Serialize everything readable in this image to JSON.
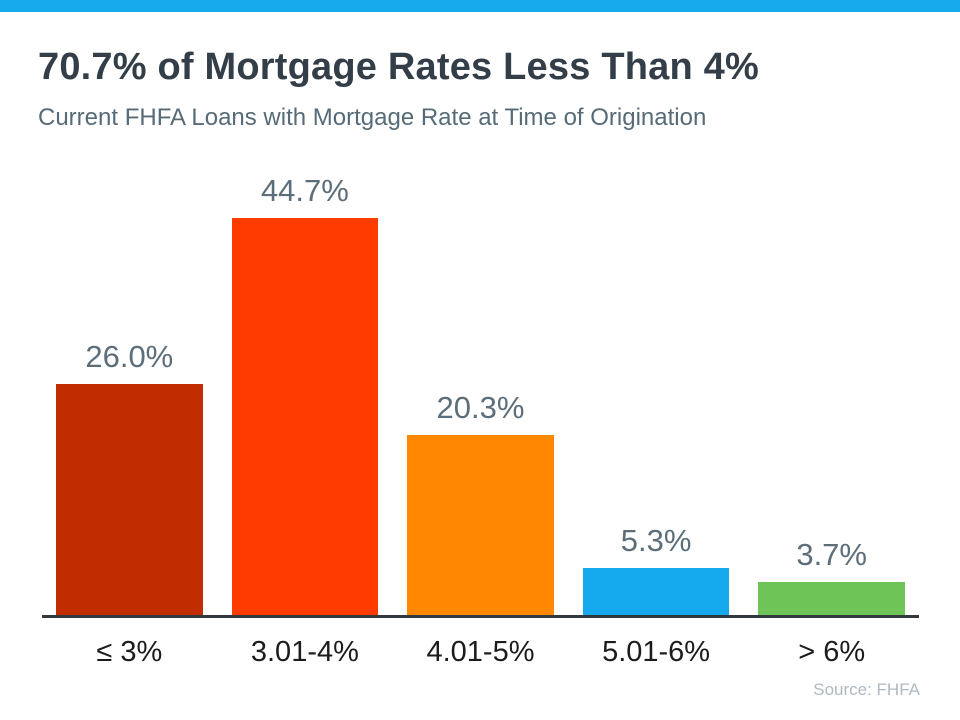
{
  "accent_color": "#17aaec",
  "header": {
    "title": "70.7% of Mortgage Rates Less Than 4%",
    "subtitle": "Current FHFA Loans with Mortgage Rate at Time of Origination"
  },
  "chart_data": {
    "type": "bar",
    "title": "70.7% of Mortgage Rates Less Than 4%",
    "subtitle": "Current FHFA Loans with Mortgage Rate at Time of Origination",
    "categories": [
      "≤ 3%",
      "3.01-4%",
      "4.01-5%",
      "5.01-6%",
      "> 6%"
    ],
    "values": [
      26.0,
      44.7,
      20.3,
      5.3,
      3.7
    ],
    "value_labels": [
      "26.0%",
      "44.7%",
      "20.3%",
      "5.3%",
      "3.7%"
    ],
    "bar_colors": [
      "#c22d00",
      "#ff3b00",
      "#ff8800",
      "#14a9ed",
      "#6fc457"
    ],
    "xlabel": "",
    "ylabel": "",
    "ylim": [
      0,
      45
    ],
    "grid": false,
    "legend": "none",
    "axis_line_color": "#33383d",
    "value_label_color": "#5d6e7b",
    "category_label_color": "#1c1c1c"
  },
  "footer": {
    "source": "Source: FHFA"
  }
}
